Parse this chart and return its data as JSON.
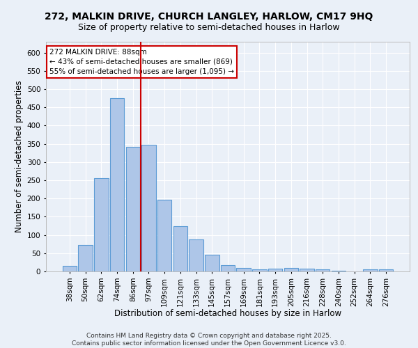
{
  "title_line1": "272, MALKIN DRIVE, CHURCH LANGLEY, HARLOW, CM17 9HQ",
  "title_line2": "Size of property relative to semi-detached houses in Harlow",
  "xlabel": "Distribution of semi-detached houses by size in Harlow",
  "ylabel": "Number of semi-detached properties",
  "categories": [
    "38sqm",
    "50sqm",
    "62sqm",
    "74sqm",
    "86sqm",
    "97sqm",
    "109sqm",
    "121sqm",
    "133sqm",
    "145sqm",
    "157sqm",
    "169sqm",
    "181sqm",
    "193sqm",
    "205sqm",
    "216sqm",
    "228sqm",
    "240sqm",
    "252sqm",
    "264sqm",
    "276sqm"
  ],
  "values": [
    15,
    73,
    256,
    476,
    342,
    348,
    197,
    125,
    88,
    46,
    17,
    10,
    5,
    7,
    9,
    8,
    5,
    1,
    0,
    5,
    5
  ],
  "bar_color": "#aec6e8",
  "bar_edge_color": "#5b9bd5",
  "vline_x_idx": 4,
  "vline_color": "#cc0000",
  "annotation_text": "272 MALKIN DRIVE: 88sqm\n← 43% of semi-detached houses are smaller (869)\n55% of semi-detached houses are larger (1,095) →",
  "annotation_box_color": "#ffffff",
  "annotation_box_edge_color": "#cc0000",
  "ylim": [
    0,
    630
  ],
  "yticks": [
    0,
    50,
    100,
    150,
    200,
    250,
    300,
    350,
    400,
    450,
    500,
    550,
    600
  ],
  "background_color": "#eaf0f8",
  "grid_color": "#ffffff",
  "footnote": "Contains HM Land Registry data © Crown copyright and database right 2025.\nContains public sector information licensed under the Open Government Licence v3.0.",
  "title_fontsize": 10,
  "subtitle_fontsize": 9,
  "axis_label_fontsize": 8.5,
  "tick_fontsize": 7.5,
  "annotation_fontsize": 7.5,
  "footnote_fontsize": 6.5
}
